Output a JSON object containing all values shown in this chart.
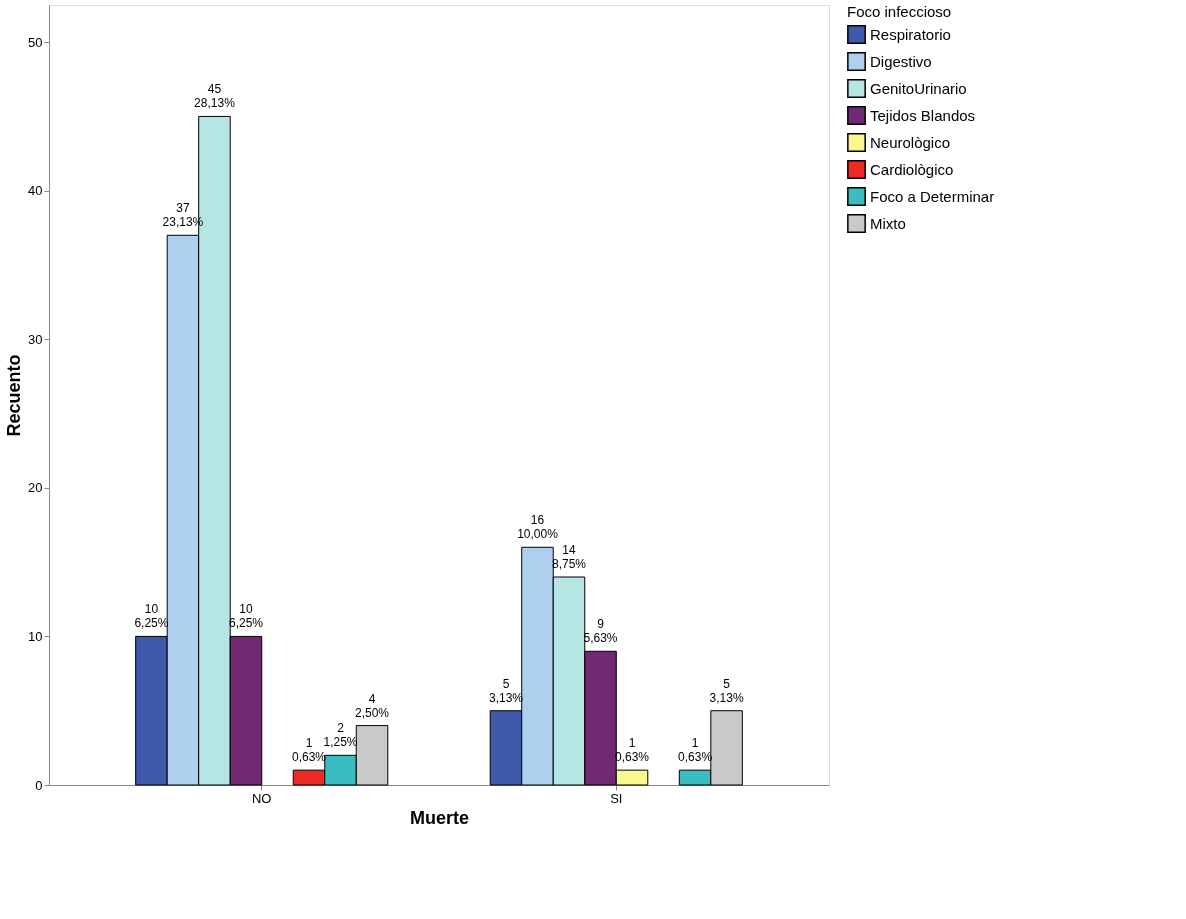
{
  "chart_data": {
    "type": "bar",
    "xlabel": "Muerte",
    "ylabel": "Recuento",
    "legend_title": "Foco infeccioso",
    "legend": "right",
    "grid": false,
    "categories": [
      "NO",
      "SI"
    ],
    "ylim": [
      0,
      52.5
    ],
    "yticks": [
      0,
      10,
      20,
      30,
      40,
      50
    ],
    "series": [
      {
        "name": "Respiratorio",
        "color": "#3e58ac",
        "values": [
          10,
          5
        ],
        "value_labels": [
          "10\n6,25%",
          "5\n3,13%"
        ]
      },
      {
        "name": "Digestivo",
        "color": "#aed0ee",
        "values": [
          37,
          16
        ],
        "value_labels": [
          "37\n23,13%",
          "16\n10,00%"
        ]
      },
      {
        "name": "GenitoUrinario",
        "color": "#b6e6e4",
        "values": [
          45,
          14
        ],
        "value_labels": [
          "45\n28,13%",
          "14\n8,75%"
        ]
      },
      {
        "name": "Tejidos Blandos",
        "color": "#6f2a73",
        "values": [
          10,
          9
        ],
        "value_labels": [
          "10\n6,25%",
          "9\n5,63%"
        ]
      },
      {
        "name": "Neurològico",
        "color": "#fbf88b",
        "values": [
          null,
          1
        ],
        "value_labels": [
          null,
          "1\n0,63%"
        ]
      },
      {
        "name": "Cardiològico",
        "color": "#ee2a25",
        "values": [
          1,
          null
        ],
        "value_labels": [
          "1\n0,63%",
          null
        ]
      },
      {
        "name": "Foco a Determinar",
        "color": "#3bbcc0",
        "values": [
          2,
          1
        ],
        "value_labels": [
          "2\n1,25%",
          "1\n0,63%"
        ]
      },
      {
        "name": "Mixto",
        "color": "#c9c9c9",
        "values": [
          4,
          5
        ],
        "value_labels": [
          "4\n2,50%",
          "5\n3,13%"
        ]
      }
    ]
  }
}
